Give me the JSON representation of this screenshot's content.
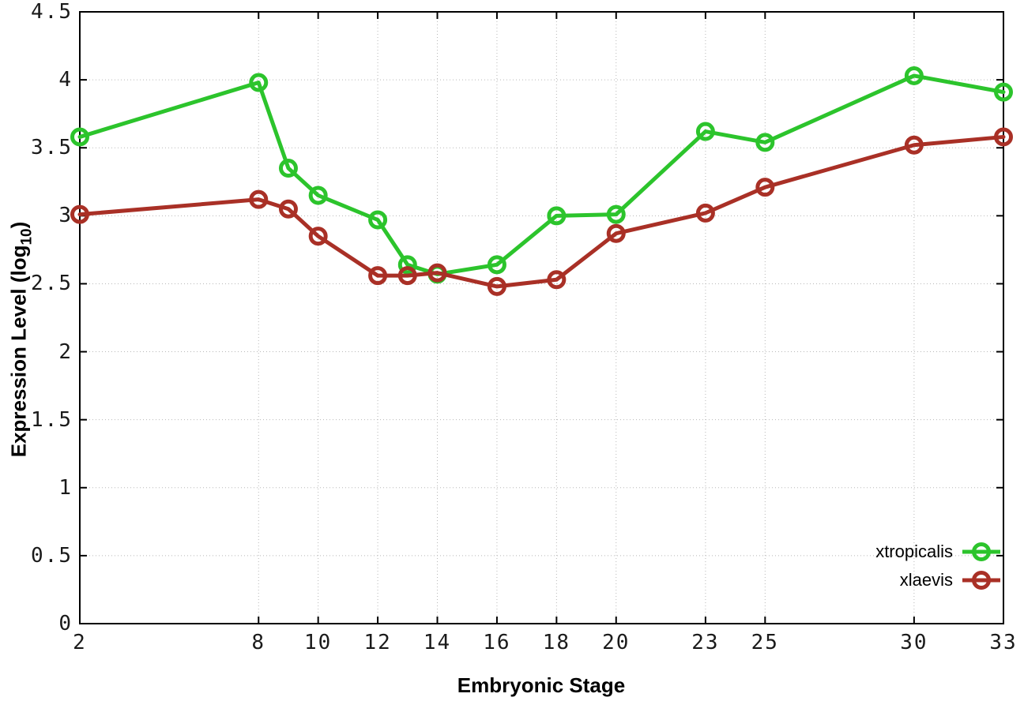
{
  "chart_data": {
    "type": "line",
    "title": "",
    "xlabel": "Embryonic Stage",
    "ylabel": {
      "prefix": "Expression Level (log",
      "sub": "10",
      "suffix": ")"
    },
    "x": [
      2,
      8,
      9,
      10,
      12,
      13,
      14,
      16,
      18,
      20,
      23,
      25,
      30,
      33
    ],
    "series": [
      {
        "name": "xtropicalis",
        "color": "#2cc42c",
        "values": [
          3.58,
          3.98,
          3.35,
          3.15,
          2.97,
          2.64,
          2.57,
          2.64,
          3.0,
          3.01,
          3.62,
          3.54,
          4.03,
          3.91
        ]
      },
      {
        "name": "xlaevis",
        "color": "#a93026",
        "values": [
          3.01,
          3.12,
          3.05,
          2.85,
          2.56,
          2.56,
          2.58,
          2.48,
          2.53,
          2.87,
          3.02,
          3.21,
          3.52,
          3.58
        ]
      }
    ],
    "xlim": [
      2,
      33
    ],
    "ylim": [
      0,
      4.5
    ],
    "x_ticks": [
      2,
      8,
      10,
      12,
      14,
      16,
      18,
      20,
      23,
      25,
      30,
      33
    ],
    "x_tick_labels": [
      "2",
      "8",
      "10",
      "12",
      "14",
      "16",
      "18",
      "20",
      "23",
      "25",
      "30",
      "33"
    ],
    "y_ticks": [
      0,
      0.5,
      1,
      1.5,
      2,
      2.5,
      3,
      3.5,
      4,
      4.5
    ],
    "y_tick_labels": [
      "0",
      "0.5",
      "1",
      "1.5",
      "2",
      "2.5",
      "3",
      "3.5",
      "4",
      "4.5"
    ],
    "grid": true,
    "legend_position": "bottom-right",
    "marker": "open-circle"
  },
  "colors": {
    "background": "#ffffff",
    "grid": "#b8b8b8",
    "axis": "#000000",
    "tick_text": "#1a1a1a"
  }
}
